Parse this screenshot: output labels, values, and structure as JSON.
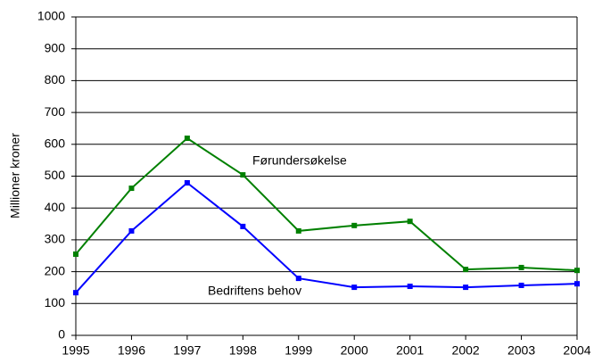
{
  "chart_data": {
    "type": "line",
    "y_label": "Millioner kroner",
    "x": [
      1995,
      1996,
      1997,
      1998,
      1999,
      2000,
      2001,
      2002,
      2003,
      2004
    ],
    "xlim": [
      1995,
      2004
    ],
    "xticks": [
      1995,
      1996,
      1997,
      1998,
      1999,
      2000,
      2001,
      2002,
      2003,
      2004
    ],
    "ylim": [
      0,
      1000
    ],
    "yticks": [
      0,
      100,
      200,
      300,
      400,
      500,
      600,
      700,
      800,
      900,
      1000
    ],
    "grid": true,
    "series": [
      {
        "name": "Førundersøkelse",
        "color": "#008000",
        "values": [
          255,
          462,
          619,
          504,
          328,
          345,
          358,
          207,
          213,
          204
        ]
      },
      {
        "name": "Bedriftens behov",
        "color": "#0000ff",
        "values": [
          134,
          328,
          479,
          342,
          179,
          151,
          154,
          151,
          157,
          162
        ]
      }
    ]
  }
}
